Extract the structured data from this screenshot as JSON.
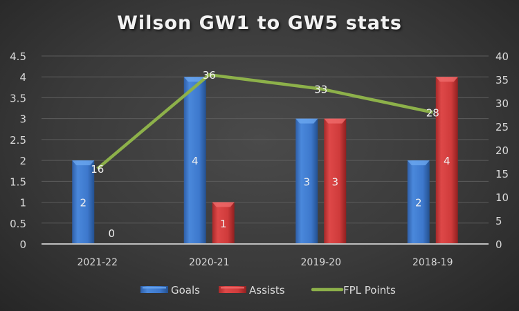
{
  "chart_data": {
    "type": "bar",
    "title": "Wilson GW1 to GW5 stats",
    "categories": [
      "2021-22",
      "2020-21",
      "2019-20",
      "2018-19"
    ],
    "series": [
      {
        "name": "Goals",
        "type": "bar",
        "axis": "left",
        "color": "#3f7bcf",
        "values": [
          2,
          4,
          3,
          2
        ]
      },
      {
        "name": "Assists",
        "type": "bar",
        "axis": "left",
        "color": "#cf3b3b",
        "values": [
          0,
          1,
          3,
          4
        ]
      },
      {
        "name": "FPL Points",
        "type": "line",
        "axis": "right",
        "color": "#8db14a",
        "values": [
          16,
          36,
          33,
          28
        ]
      }
    ],
    "y_left": {
      "min": 0,
      "max": 4.5,
      "step": 0.5,
      "ticks": [
        "0",
        "0.5",
        "1",
        "1.5",
        "2",
        "2.5",
        "3",
        "3.5",
        "4",
        "4.5"
      ]
    },
    "y_right": {
      "min": 0,
      "max": 40,
      "step": 5,
      "ticks": [
        "0",
        "5",
        "10",
        "15",
        "20",
        "25",
        "30",
        "35",
        "40"
      ]
    },
    "xlabel": "",
    "ylabel": "",
    "grid": true,
    "legend_position": "bottom",
    "data_labels": true
  },
  "legend": [
    {
      "label": "Goals"
    },
    {
      "label": "Assists"
    },
    {
      "label": "FPL Points"
    }
  ]
}
